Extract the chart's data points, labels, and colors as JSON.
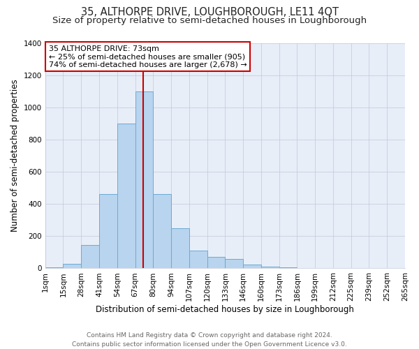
{
  "title": "35, ALTHORPE DRIVE, LOUGHBOROUGH, LE11 4QT",
  "subtitle": "Size of property relative to semi-detached houses in Loughborough",
  "xlabel": "Distribution of semi-detached houses by size in Loughborough",
  "ylabel": "Number of semi-detached properties",
  "footer_line1": "Contains HM Land Registry data © Crown copyright and database right 2024.",
  "footer_line2": "Contains public sector information licensed under the Open Government Licence v3.0.",
  "bin_labels": [
    "1sqm",
    "15sqm",
    "28sqm",
    "41sqm",
    "54sqm",
    "67sqm",
    "80sqm",
    "94sqm",
    "107sqm",
    "120sqm",
    "133sqm",
    "146sqm",
    "160sqm",
    "173sqm",
    "186sqm",
    "199sqm",
    "212sqm",
    "225sqm",
    "239sqm",
    "252sqm",
    "265sqm"
  ],
  "counts": [
    5,
    30,
    145,
    460,
    900,
    1100,
    460,
    250,
    110,
    70,
    60,
    25,
    10,
    5,
    3,
    2,
    2,
    1,
    0,
    0
  ],
  "bar_color": "#b8d4ee",
  "bar_edge_color": "#6aaad4",
  "vline_bin_index": 5.46,
  "vline_color": "#cc0000",
  "annotation_title": "35 ALTHORPE DRIVE: 73sqm",
  "annotation_line1": "← 25% of semi-detached houses are smaller (905)",
  "annotation_line2": "74% of semi-detached houses are larger (2,678) →",
  "annotation_box_color": "#ffffff",
  "annotation_box_edge_color": "#cc0000",
  "ylim": [
    0,
    1400
  ],
  "background_color": "#ffffff",
  "plot_bg_color": "#e8eef8",
  "grid_color": "#c0c8d8",
  "title_fontsize": 10.5,
  "subtitle_fontsize": 9.5,
  "axis_label_fontsize": 8.5,
  "tick_fontsize": 7.5,
  "footer_fontsize": 6.5
}
